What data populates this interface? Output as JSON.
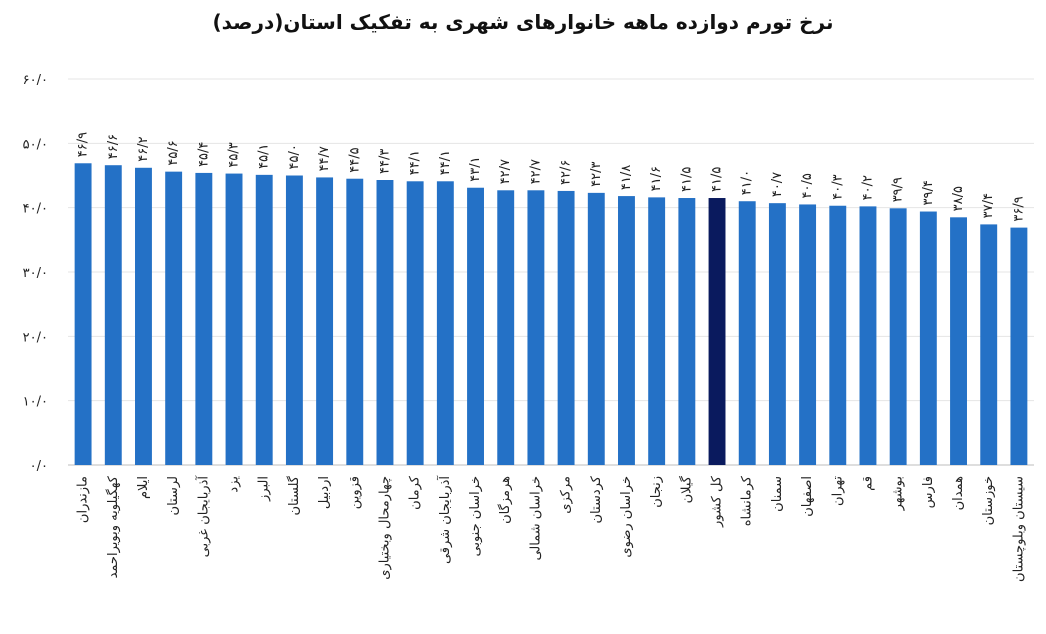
{
  "chart_data": {
    "type": "bar",
    "title": "نرخ تورم دوازده ماهه خانوارهای شهری به تفکیک استان(درصد)",
    "xlabel": "",
    "ylabel": "",
    "ylim": [
      0,
      60
    ],
    "yticks": [
      0,
      10,
      20,
      30,
      40,
      50,
      60
    ],
    "ytick_labels": [
      "۰/۰",
      "۱۰/۰",
      "۲۰/۰",
      "۳۰/۰",
      "۴۰/۰",
      "۵۰/۰",
      "۶۰/۰"
    ],
    "grid": true,
    "bar_color": "#2471C6",
    "highlight_color": "#0A1A5E",
    "highlight_category": "کل کشور",
    "categories": [
      "مازندران",
      "کهگیلویه وبویراحمد",
      "ایلام",
      "لرستان",
      "آذربایجان غربی",
      "یزد",
      "البرز",
      "گلستان",
      "اردبیل",
      "قزوین",
      "چهارمحال وبختیاری",
      "کرمان",
      "آذربایجان شرقی",
      "خراسان جنوبی",
      "هرمزگان",
      "خراسان شمالی",
      "مرکزی",
      "کردستان",
      "خراسان رضوی",
      "زنجان",
      "گیلان",
      "کل کشور",
      "کرمانشاه",
      "سمنان",
      "اصفهان",
      "تهران",
      "قم",
      "بوشهر",
      "فارس",
      "همدان",
      "خوزستان",
      "سیستان وبلوچستان"
    ],
    "values": [
      46.9,
      46.6,
      46.2,
      45.6,
      45.4,
      45.3,
      45.1,
      45.0,
      44.7,
      44.5,
      44.3,
      44.1,
      44.1,
      43.1,
      42.7,
      42.7,
      42.6,
      42.3,
      41.8,
      41.6,
      41.5,
      41.5,
      41.0,
      40.7,
      40.5,
      40.3,
      40.2,
      39.9,
      39.4,
      38.5,
      37.4,
      36.9
    ],
    "value_labels": [
      "۴۶/۹",
      "۴۶/۶",
      "۴۶/۲",
      "۴۵/۶",
      "۴۵/۴",
      "۴۵/۳",
      "۴۵/۱",
      "۴۵/۰",
      "۴۴/۷",
      "۴۴/۵",
      "۴۴/۳",
      "۴۴/۱",
      "۴۴/۱",
      "۴۳/۱",
      "۴۲/۷",
      "۴۲/۷",
      "۴۲/۶",
      "۴۲/۳",
      "۴۱/۸",
      "۴۱/۶",
      "۴۱/۵",
      "۴۱/۵",
      "۴۱/۰",
      "۴۰/۷",
      "۴۰/۵",
      "۴۰/۳",
      "۴۰/۲",
      "۳۹/۹",
      "۳۹/۴",
      "۳۸/۵",
      "۳۷/۴",
      "۳۶/۹"
    ]
  }
}
